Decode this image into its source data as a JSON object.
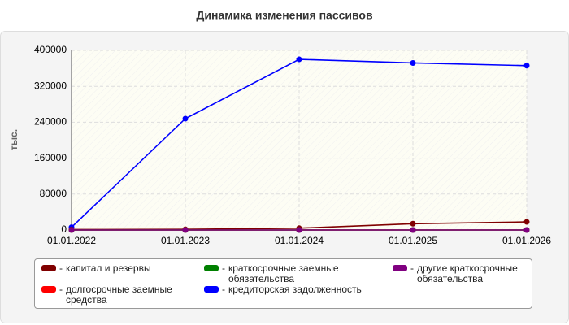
{
  "chart_data": {
    "type": "line",
    "title": "Динамика изменения пассивов",
    "y_label": "тыс.",
    "categories": [
      "01.01.2022",
      "01.01.2023",
      "01.01.2024",
      "01.01.2025",
      "01.01.2026"
    ],
    "series": [
      {
        "name": "капитал и резервы",
        "color": "#800000",
        "values": [
          1000,
          1500,
          4000,
          14000,
          18000
        ]
      },
      {
        "name": "долгосрочные заемные средства",
        "color": "#ff0000",
        "values": [
          0,
          0,
          0,
          0,
          0
        ]
      },
      {
        "name": "краткосрочные заемные обязательства",
        "color": "#008000",
        "values": [
          0,
          0,
          0,
          0,
          0
        ]
      },
      {
        "name": "кредиторская задолженность",
        "color": "#0000ff",
        "values": [
          6000,
          248000,
          380000,
          372000,
          366000
        ]
      },
      {
        "name": "другие краткосрочные обязательства",
        "color": "#800080",
        "values": [
          0,
          0,
          0,
          0,
          0
        ]
      }
    ],
    "ylim": [
      0,
      400000
    ],
    "yticks": [
      0,
      80000,
      160000,
      240000,
      320000,
      400000
    ],
    "grid": true
  }
}
